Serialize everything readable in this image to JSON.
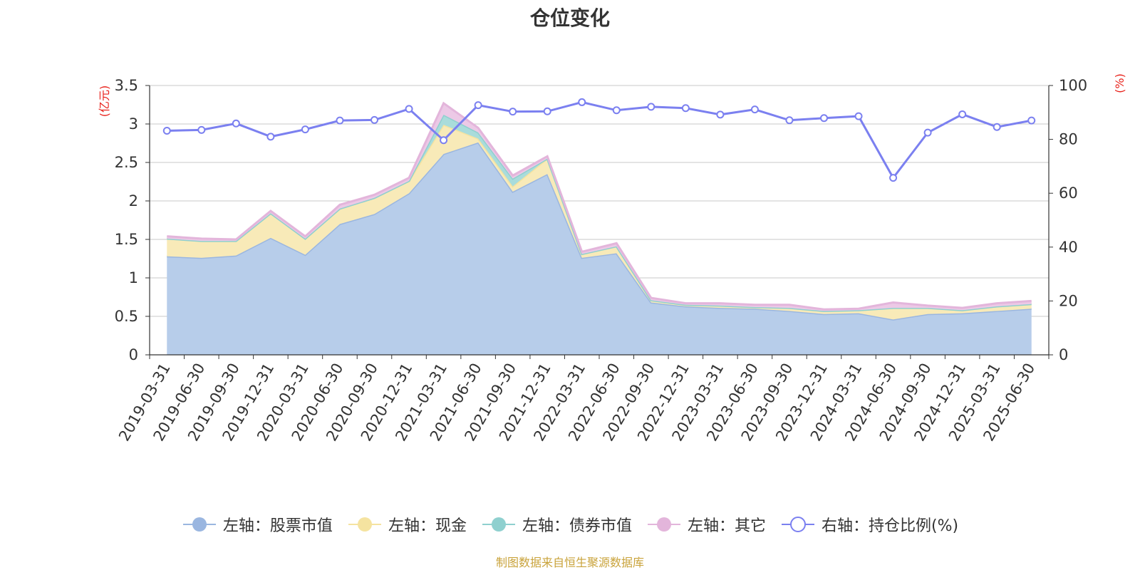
{
  "chart_data": {
    "type": "area",
    "title": "仓位变化",
    "left_axis_unit": "(亿元)",
    "right_axis_unit": "(%)",
    "categories": [
      "2019-03-31",
      "2019-06-30",
      "2019-09-30",
      "2019-12-31",
      "2020-03-31",
      "2020-06-30",
      "2020-09-30",
      "2020-12-31",
      "2021-03-31",
      "2021-06-30",
      "2021-09-30",
      "2021-12-31",
      "2022-03-31",
      "2022-06-30",
      "2022-09-30",
      "2022-12-31",
      "2023-03-31",
      "2023-06-30",
      "2023-09-30",
      "2023-12-31",
      "2024-03-31",
      "2024-06-30",
      "2024-09-30",
      "2024-12-31",
      "2025-03-31",
      "2025-06-30"
    ],
    "y_left": {
      "min": 0,
      "max": 3.5,
      "ticks": [
        "0",
        "0.5",
        "1",
        "1.5",
        "2",
        "2.5",
        "3",
        "3.5"
      ]
    },
    "y_right": {
      "min": 0,
      "max": 100,
      "ticks": [
        "0",
        "20",
        "40",
        "60",
        "80",
        "100"
      ]
    },
    "grid": true,
    "legend_position": "bottom",
    "series": [
      {
        "name": "左轴：股票市值",
        "axis": "left",
        "stacked": true,
        "color": "#9ab6e0",
        "fill": "#b7cdea",
        "values": [
          1.28,
          1.26,
          1.29,
          1.52,
          1.3,
          1.7,
          1.83,
          2.1,
          2.61,
          2.76,
          2.12,
          2.35,
          1.26,
          1.32,
          0.68,
          0.63,
          0.61,
          0.6,
          0.57,
          0.53,
          0.54,
          0.46,
          0.53,
          0.54,
          0.57,
          0.6
        ]
      },
      {
        "name": "左轴：现金",
        "axis": "left",
        "stacked": true,
        "color": "#f5e3a0",
        "fill": "#f8eab8",
        "values": [
          0.23,
          0.22,
          0.19,
          0.32,
          0.21,
          0.2,
          0.21,
          0.16,
          0.38,
          0.05,
          0.07,
          0.2,
          0.05,
          0.09,
          0.03,
          0.02,
          0.03,
          0.02,
          0.04,
          0.04,
          0.04,
          0.15,
          0.08,
          0.04,
          0.06,
          0.06
        ]
      },
      {
        "name": "左轴：债券市值",
        "axis": "left",
        "stacked": true,
        "color": "#8fd0cf",
        "fill": "#a9dcdb",
        "values": [
          0,
          0,
          0,
          0,
          0,
          0,
          0,
          0,
          0.13,
          0.08,
          0.1,
          0,
          0,
          0,
          0,
          0,
          0,
          0,
          0,
          0,
          0,
          0,
          0,
          0,
          0,
          0
        ]
      },
      {
        "name": "左轴：其它",
        "axis": "left",
        "stacked": true,
        "color": "#e3b5db",
        "fill": "#ecc9e6",
        "values": [
          0.03,
          0.03,
          0.02,
          0.03,
          0.03,
          0.05,
          0.04,
          0.04,
          0.15,
          0.06,
          0.04,
          0.03,
          0.03,
          0.04,
          0.03,
          0.02,
          0.03,
          0.03,
          0.04,
          0.02,
          0.02,
          0.07,
          0.03,
          0.03,
          0.04,
          0.04
        ]
      },
      {
        "name": "右轴：持仓比例(%)",
        "axis": "right",
        "type": "line",
        "color": "#7b80f0",
        "values": [
          83.2,
          83.5,
          85.9,
          81.0,
          83.7,
          87.0,
          87.2,
          91.3,
          79.7,
          92.7,
          90.3,
          90.4,
          93.8,
          90.8,
          92.1,
          91.6,
          89.2,
          91.1,
          87.1,
          87.9,
          88.6,
          65.7,
          82.5,
          89.3,
          84.6,
          87.0
        ]
      }
    ]
  },
  "source_text": "制图数据来自恒生聚源数据库"
}
